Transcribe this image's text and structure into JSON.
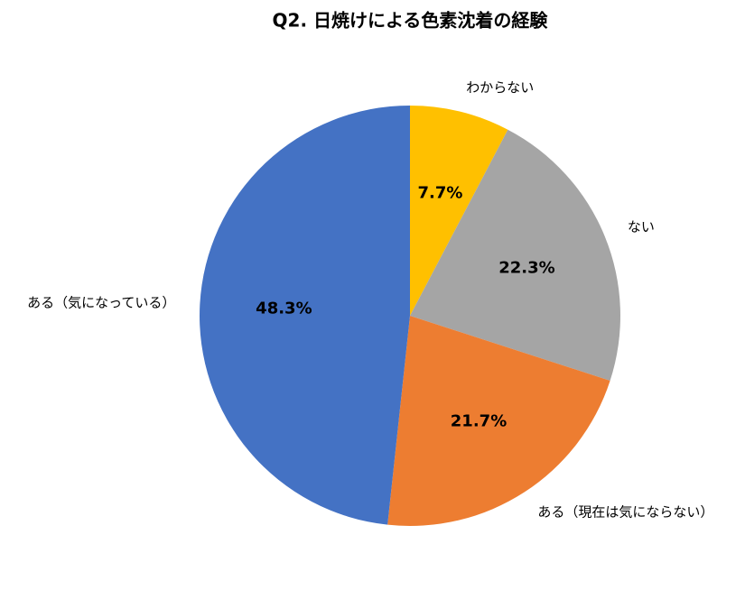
{
  "chart_data": {
    "type": "pie",
    "title": "Q2. 日焼けによる色素沈着の経験",
    "categories": [
      "わからない",
      "ない",
      "ある（現在は気にならない）",
      "ある（気になっている）"
    ],
    "values": [
      7.7,
      22.3,
      21.7,
      48.3
    ],
    "value_labels": [
      "7.7%",
      "22.3%",
      "21.7%",
      "48.3%"
    ],
    "colors": [
      "#ffc000",
      "#a5a5a5",
      "#ed7d31",
      "#4472c4"
    ]
  }
}
